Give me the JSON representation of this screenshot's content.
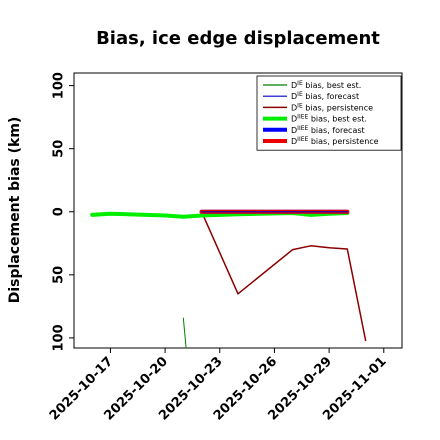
{
  "chart_data": {
    "type": "line",
    "title": "Bias, ice edge displacement",
    "xlabel": "",
    "ylabel": "Displacement bias (km)",
    "xlim": [
      "2025-10-15",
      "2025-11-02"
    ],
    "ylim": [
      -108,
      110
    ],
    "yticks": [
      -100,
      -50,
      0,
      50,
      100
    ],
    "yticklabels": [
      "100",
      "50",
      "0",
      "50",
      "100"
    ],
    "xticks": [
      "2025-10-17",
      "2025-10-20",
      "2025-10-23",
      "2025-10-26",
      "2025-10-29",
      "2025-11-01"
    ],
    "highlight_xtick": "2025-10-23",
    "highlight_color": "#2e8b2e",
    "legend_position": "upper-right",
    "grid": false,
    "series": [
      {
        "name": "DIE bias, best est.",
        "label_base": "D",
        "label_sup": "IE",
        "label_rest": " bias, best est.",
        "color": "#008000",
        "width": 1.2,
        "points": [
          [
            "2025-10-16",
            -3
          ],
          [
            "2025-10-17",
            -1.5
          ],
          [
            "2025-10-20",
            -3.5
          ],
          [
            "2025-10-21",
            -4
          ],
          [
            "2025-10-22",
            -2.5
          ],
          [
            "2025-10-24",
            -2
          ],
          [
            "2025-10-27",
            -1
          ],
          [
            "2025-10-28",
            -2.5
          ],
          [
            "2025-10-29",
            -1.5
          ],
          [
            "2025-10-30",
            -0.5
          ]
        ]
      },
      {
        "name": "DIE bias, forecast",
        "label_base": "D",
        "label_sup": "IE",
        "label_rest": " bias, forecast",
        "color": "#0000cc",
        "width": 1.2,
        "points": [
          [
            "2025-10-22",
            0
          ],
          [
            "2025-10-24",
            0
          ],
          [
            "2025-10-27",
            0
          ],
          [
            "2025-10-30",
            0
          ]
        ]
      },
      {
        "name": "DIE bias, persistence",
        "label_base": "D",
        "label_sup": "IE",
        "label_rest": " bias, persistence",
        "color": "#8b0000",
        "width": 1.5,
        "points": [
          [
            "2025-10-22",
            0
          ],
          [
            "2025-10-24",
            -65
          ],
          [
            "2025-10-27",
            -30
          ],
          [
            "2025-10-28",
            -27
          ],
          [
            "2025-10-29",
            -28.5
          ],
          [
            "2025-10-30",
            -29.5
          ],
          [
            "2025-10-31",
            -102
          ]
        ]
      },
      {
        "name": "DIIEE bias, best est.",
        "label_base": "D",
        "label_sup": "IIEE",
        "label_rest": " bias, best est.",
        "color": "#00ee00",
        "width": 4,
        "points": [
          [
            "2025-10-16",
            -2.5
          ],
          [
            "2025-10-17",
            -1.5
          ],
          [
            "2025-10-20",
            -3
          ],
          [
            "2025-10-21",
            -4
          ],
          [
            "2025-10-22",
            -3
          ],
          [
            "2025-10-24",
            -2
          ],
          [
            "2025-10-27",
            -1
          ],
          [
            "2025-10-28",
            -2.5
          ],
          [
            "2025-10-29",
            -1.5
          ],
          [
            "2025-10-30",
            -1
          ]
        ]
      },
      {
        "name": "DIIEE bias, forecast",
        "label_base": "D",
        "label_sup": "IIEE",
        "label_rest": " bias, forecast",
        "color": "#0000ff",
        "width": 4,
        "points": [
          [
            "2025-10-22",
            0
          ],
          [
            "2025-10-24",
            0
          ],
          [
            "2025-10-27",
            0
          ],
          [
            "2025-10-30",
            0
          ]
        ]
      },
      {
        "name": "DIIEE bias, persistence",
        "label_base": "D",
        "label_sup": "IIEE",
        "label_rest": " bias, persistence",
        "color": "#ee0000",
        "width": 4,
        "points": [
          [
            "2025-10-22",
            0
          ],
          [
            "2025-10-24",
            0
          ],
          [
            "2025-10-27",
            0
          ],
          [
            "2025-10-30",
            0
          ]
        ]
      }
    ],
    "marker_line": {
      "color": "#008000",
      "width": 1,
      "points": [
        [
          "2025-10-21",
          -84
        ],
        [
          "2025-10-21.15",
          -108
        ]
      ]
    }
  }
}
